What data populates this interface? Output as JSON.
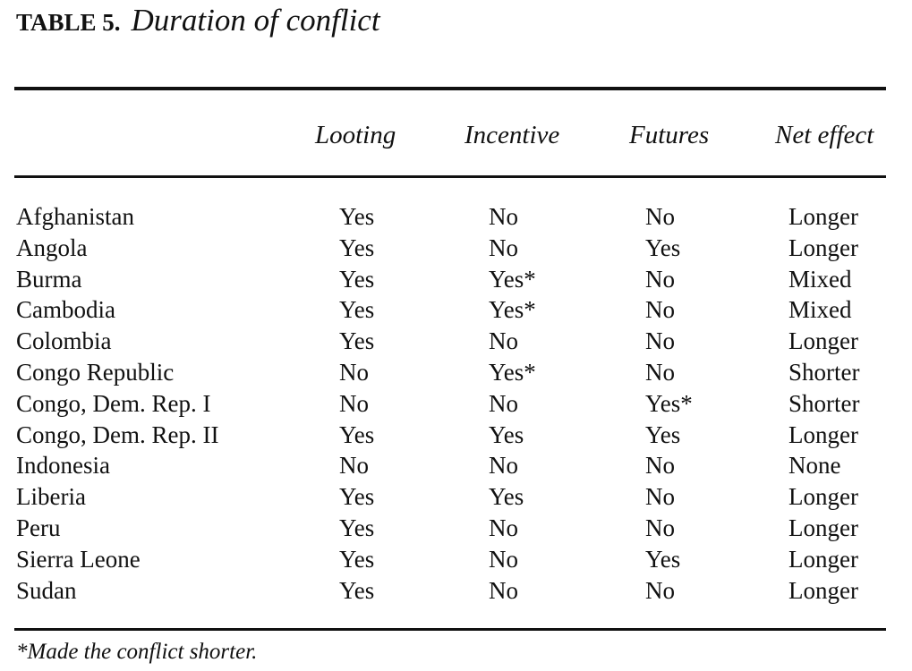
{
  "table": {
    "label": "TABLE 5.",
    "title": "Duration of conflict",
    "headers": {
      "country": "",
      "looting": "Looting",
      "incentive": "Incentive",
      "futures": "Futures",
      "net_effect": "Net effect"
    },
    "rows": [
      {
        "country": "Afghanistan",
        "looting": "Yes",
        "incentive": "No",
        "futures": "No",
        "net_effect": "Longer"
      },
      {
        "country": "Angola",
        "looting": "Yes",
        "incentive": "No",
        "futures": "Yes",
        "net_effect": "Longer"
      },
      {
        "country": "Burma",
        "looting": "Yes",
        "incentive": "Yes*",
        "futures": "No",
        "net_effect": "Mixed"
      },
      {
        "country": "Cambodia",
        "looting": "Yes",
        "incentive": "Yes*",
        "futures": "No",
        "net_effect": "Mixed"
      },
      {
        "country": "Colombia",
        "looting": "Yes",
        "incentive": "No",
        "futures": "No",
        "net_effect": "Longer"
      },
      {
        "country": "Congo Republic",
        "looting": "No",
        "incentive": "Yes*",
        "futures": "No",
        "net_effect": "Shorter"
      },
      {
        "country": "Congo, Dem. Rep. I",
        "looting": "No",
        "incentive": "No",
        "futures": "Yes*",
        "net_effect": "Shorter"
      },
      {
        "country": "Congo, Dem. Rep. II",
        "looting": "Yes",
        "incentive": "Yes",
        "futures": "Yes",
        "net_effect": "Longer"
      },
      {
        "country": "Indonesia",
        "looting": "No",
        "incentive": "No",
        "futures": "No",
        "net_effect": "None"
      },
      {
        "country": "Liberia",
        "looting": "Yes",
        "incentive": "Yes",
        "futures": "No",
        "net_effect": "Longer"
      },
      {
        "country": "Peru",
        "looting": "Yes",
        "incentive": "No",
        "futures": "No",
        "net_effect": "Longer"
      },
      {
        "country": "Sierra Leone",
        "looting": "Yes",
        "incentive": "No",
        "futures": "Yes",
        "net_effect": "Longer"
      },
      {
        "country": "Sudan",
        "looting": "Yes",
        "incentive": "No",
        "futures": "No",
        "net_effect": "Longer"
      }
    ],
    "footnote": "*Made the conflict shorter."
  },
  "colors": {
    "text": "#111111",
    "background": "#ffffff"
  }
}
